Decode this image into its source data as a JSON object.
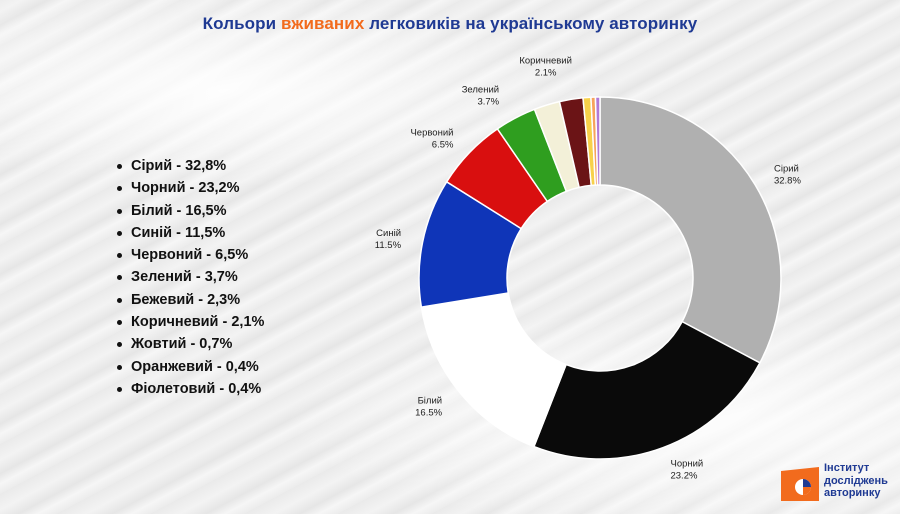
{
  "title": {
    "part1": "Кольори ",
    "accent": "вживаних",
    "part2": " легковиків на українському авторинку",
    "color_main": "#1f3a93",
    "color_accent": "#f26b1d"
  },
  "legend_items": [
    "Сірий - 32,8%",
    "Чорний - 23,2%",
    "Білий - 16,5%",
    "Синій - 11,5%",
    "Червоний - 6,5%",
    "Зелений - 3,7%",
    "Бежевий - 2,3%",
    "Коричневий - 2,1%",
    "Жовтий - 0,7%",
    "Оранжевий - 0,4%",
    "Фіолетовий - 0,4%"
  ],
  "chart_data": {
    "type": "pie",
    "donut": true,
    "title": "Кольори вживаних легковиків на українському авторинку",
    "categories": [
      "Сірий",
      "Чорний",
      "Білий",
      "Синій",
      "Червоний",
      "Зелений",
      "Бежевий",
      "Коричневий",
      "Жовтий",
      "Оранжевий",
      "Фіолетовий"
    ],
    "values": [
      32.8,
      23.2,
      16.5,
      11.5,
      6.5,
      3.7,
      2.3,
      2.1,
      0.7,
      0.4,
      0.4
    ],
    "colors": [
      "#b0b0b0",
      "#0a0a0a",
      "#ffffff",
      "#0f35b8",
      "#d90f0f",
      "#2f9e1f",
      "#f3f0d8",
      "#6b1416",
      "#f7d14a",
      "#f7a35c",
      "#b27ad6"
    ],
    "data_labels": [
      {
        "name": "Сірий",
        "value": "32.8%"
      },
      {
        "name": "Чорний",
        "value": "23.2%"
      },
      {
        "name": "Білий",
        "value": "16.5%"
      },
      {
        "name": "Синій",
        "value": "11.5%"
      },
      {
        "name": "Червоний",
        "value": "6.5%"
      },
      {
        "name": "Зелений",
        "value": "3.7%"
      },
      {
        "name": "Коричневий",
        "value": "2.1%"
      }
    ],
    "start_angle_deg": 0,
    "direction": "clockwise"
  },
  "logo": {
    "lines": [
      "Інститут",
      "досліджень",
      "авторинку"
    ],
    "color": "#f26b1d"
  }
}
